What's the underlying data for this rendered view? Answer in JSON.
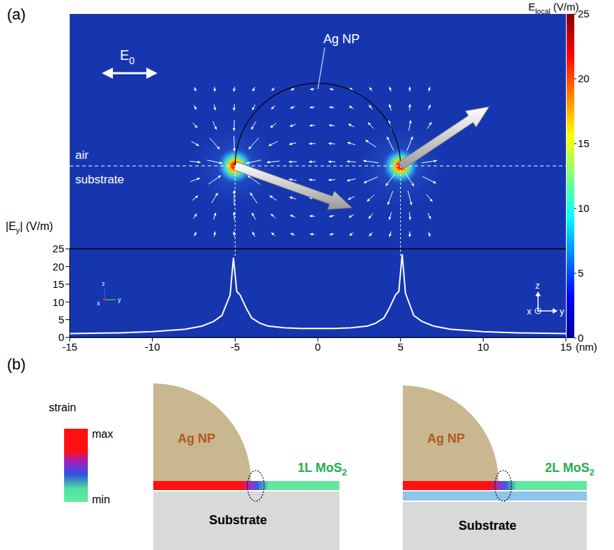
{
  "chart_data": {
    "type": "line",
    "y_label": {
      "text": "|E",
      "sub": "y",
      "after": "| (V/m)"
    },
    "x_label": "(nm)",
    "x": [
      -15,
      -12,
      -10,
      -8,
      -7,
      -6.3,
      -5.8,
      -5.3,
      -5.1,
      -4.9,
      -4.7,
      -4.3,
      -4,
      -3.5,
      -3,
      -2,
      -1,
      0,
      1,
      2,
      3,
      3.5,
      4,
      4.3,
      4.7,
      4.9,
      5.1,
      5.3,
      5.8,
      6.3,
      7,
      8,
      10,
      12,
      15
    ],
    "values": [
      1.1,
      1.3,
      1.6,
      2.3,
      3.2,
      4.5,
      6.2,
      12,
      22.5,
      13,
      12,
      8,
      5.5,
      4,
      3.2,
      2.7,
      2.5,
      2.5,
      2.5,
      2.7,
      3.2,
      4,
      5.5,
      8,
      12,
      13,
      23.5,
      12.5,
      6.2,
      4.5,
      3.2,
      2.3,
      1.6,
      1.3,
      1.1
    ],
    "color": "#ffffff",
    "xlim": [
      -15,
      15
    ],
    "xticks": [
      -15,
      -10,
      -5,
      0,
      5,
      10,
      15
    ],
    "ylim": [
      0,
      25
    ],
    "yticks": [
      0,
      5,
      10,
      15,
      20,
      25
    ],
    "grid": false
  },
  "field_map": {
    "label": "(a)",
    "colorbar": {
      "title": {
        "text": "E",
        "sub": "local",
        "after": " (V/m)"
      },
      "range": [
        0,
        25
      ],
      "ticks": [
        0,
        5,
        10,
        15,
        20,
        25
      ]
    },
    "incident_field": {
      "text": "E",
      "sub": "0",
      "after": ""
    },
    "particle": "Ag NP",
    "upper_medium": "air",
    "lower_medium": "substrate",
    "axes": [
      "x",
      "y",
      "z"
    ]
  },
  "panel_b": {
    "label": "(b)",
    "strain_bar": {
      "title": "strain",
      "max": "max",
      "min": "min"
    },
    "schematics": [
      {
        "particle": "Ag NP",
        "layer": {
          "text": "1L MoS",
          "sub": "2",
          "after": ""
        },
        "substrate": "Substrate"
      },
      {
        "particle": "Ag NP",
        "layer": {
          "text": "2L MoS",
          "sub": "2",
          "after": ""
        },
        "substrate": "Substrate"
      }
    ]
  }
}
